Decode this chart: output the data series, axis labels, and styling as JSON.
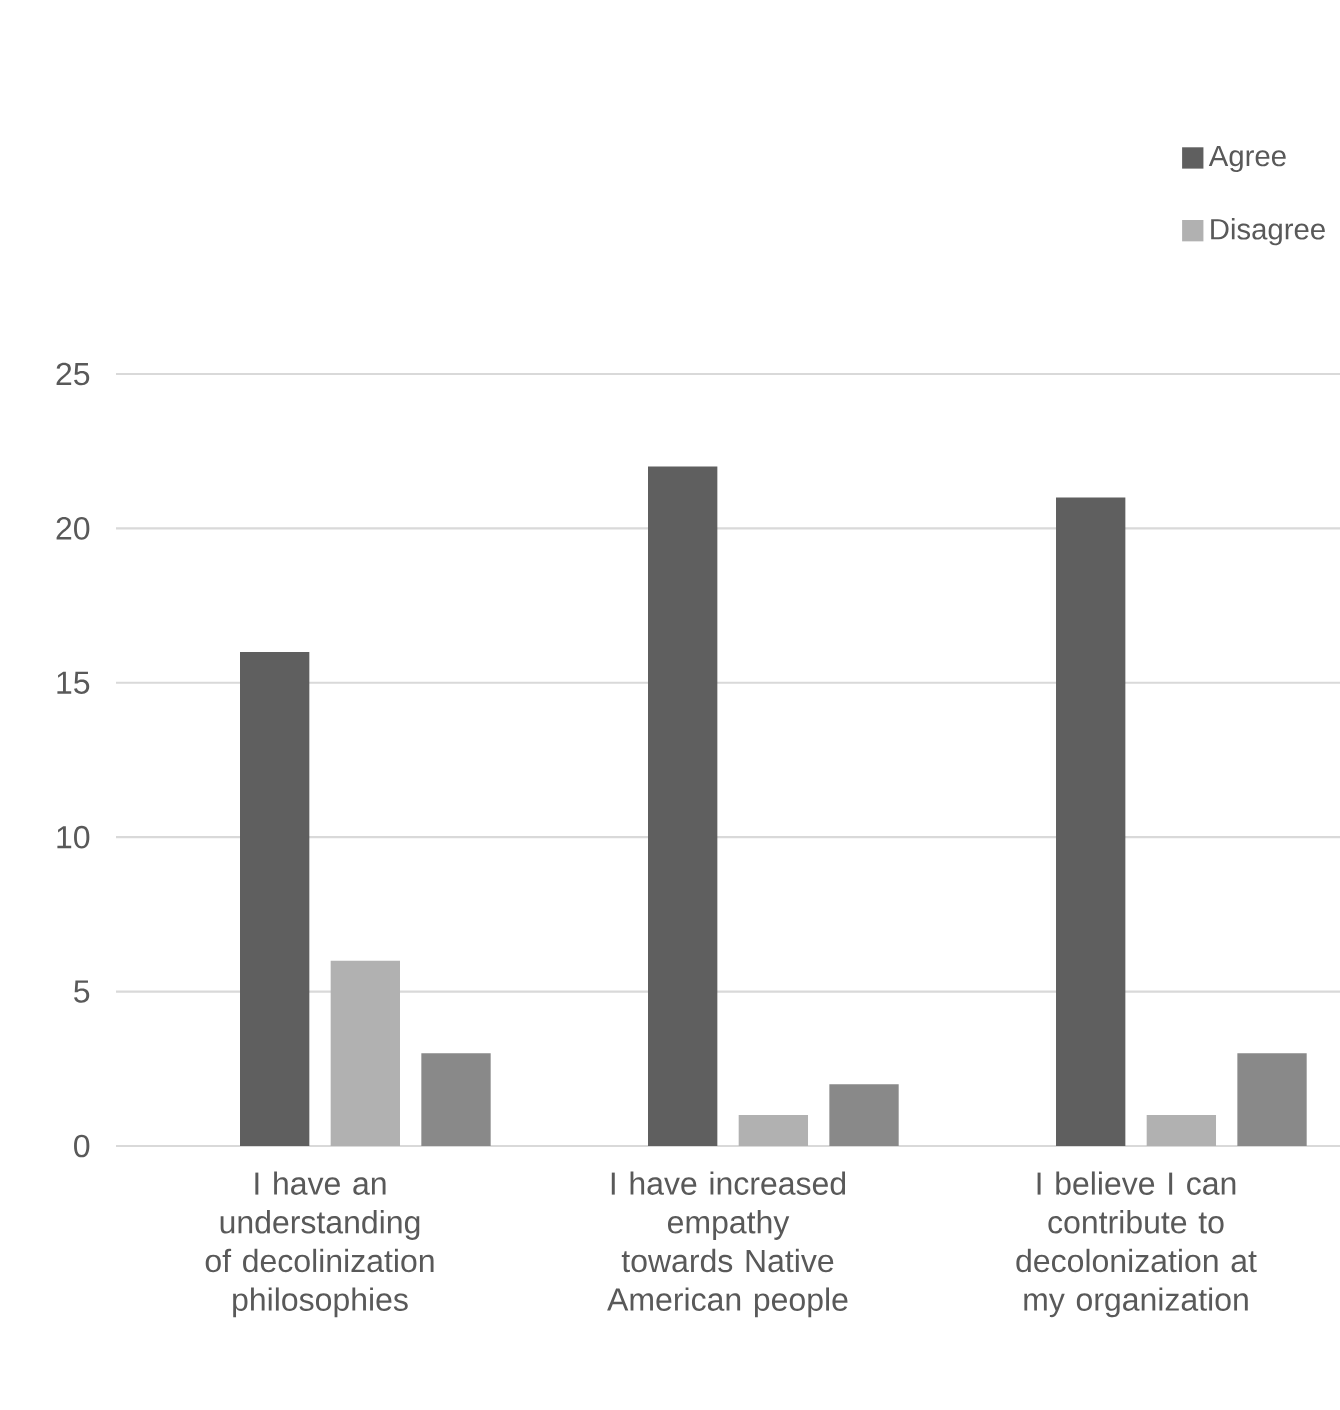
{
  "chart_data": {
    "type": "bar",
    "categories": [
      "I have an understanding of decolinization philosophies",
      "I have increased empathy towards Native American people",
      "I believe I can contribute to decolonization at my organization"
    ],
    "series": [
      {
        "name": "Agree",
        "color": "#5f5f5f",
        "values": [
          16,
          22,
          21
        ]
      },
      {
        "name": "Disagree",
        "color": "#b1b1b1",
        "values": [
          6,
          1,
          1
        ]
      },
      {
        "color": "#898989",
        "values": [
          3,
          2,
          3
        ]
      }
    ],
    "ylim": [
      0,
      25
    ],
    "yticks": [
      0,
      5,
      10,
      15,
      20,
      25
    ],
    "grid": "y",
    "legend": "top right"
  }
}
